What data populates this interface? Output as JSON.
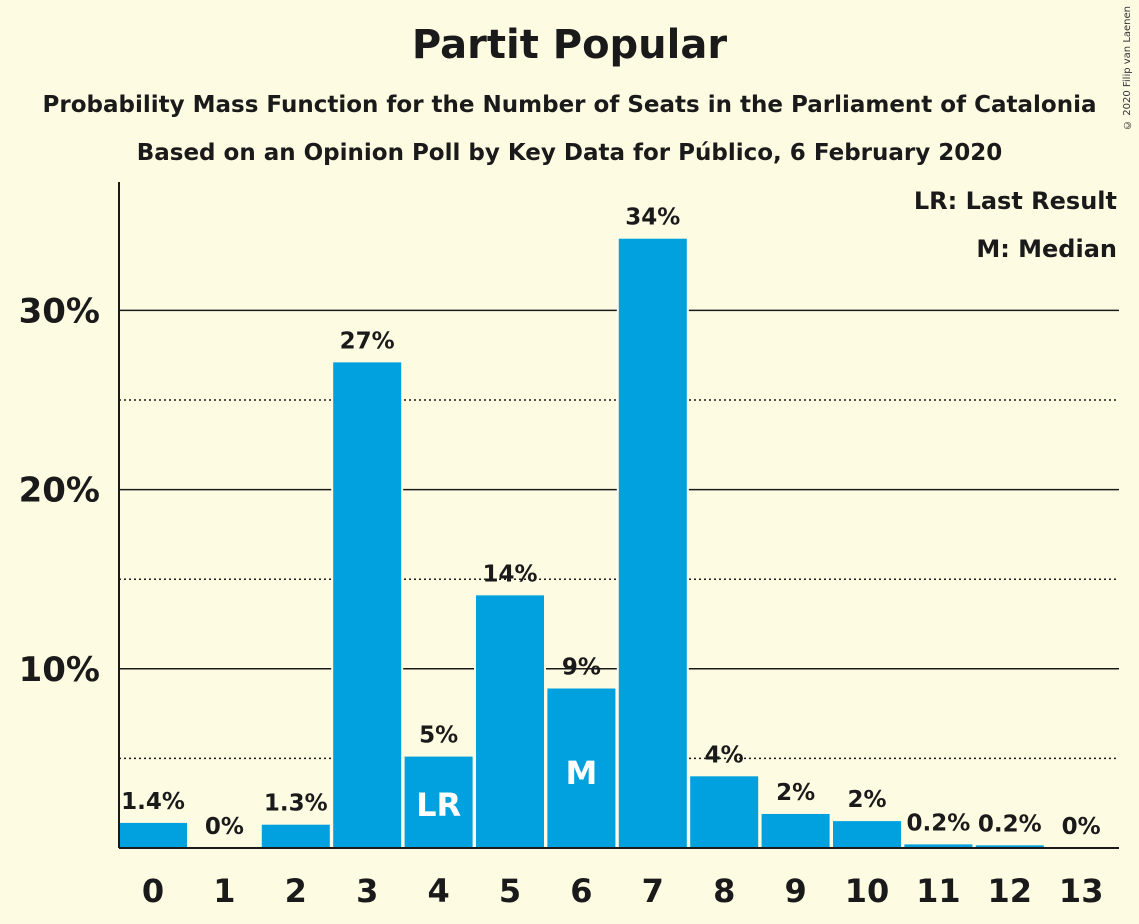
{
  "chart_data": {
    "type": "bar",
    "title": "Partit Popular",
    "subtitle_1": "Probability Mass Function for the Number of Seats in the Parliament of Catalonia",
    "subtitle_2": "Based on an Opinion Poll by Key Data for Público, 6 February 2020",
    "copyright": "© 2020 Filip van Laenen",
    "categories": [
      "0",
      "1",
      "2",
      "3",
      "4",
      "5",
      "6",
      "7",
      "8",
      "9",
      "10",
      "11",
      "12",
      "13"
    ],
    "values": [
      1.4,
      0,
      1.3,
      27.1,
      5.1,
      14.1,
      8.9,
      34.0,
      4.0,
      1.9,
      1.5,
      0.2,
      0.15,
      0
    ],
    "data_labels": [
      "1.4%",
      "0%",
      "1.3%",
      "27%",
      "5%",
      "14%",
      "9%",
      "34%",
      "4%",
      "2%",
      "2%",
      "0.2%",
      "0.2%",
      "0%"
    ],
    "bar_markers": {
      "4": "LR",
      "6": "M"
    },
    "ylim": [
      0,
      37
    ],
    "y_ticks": [
      10,
      20,
      30
    ],
    "y_tick_labels": [
      "10%",
      "20%",
      "30%"
    ],
    "minor_gridlines": [
      5,
      15,
      25
    ],
    "legend": [
      "LR: Last Result",
      "M: Median"
    ],
    "legend_position": "top-right",
    "colors": {
      "bar": "#00a1de",
      "background": "#fefbe3",
      "text": "#1a1a1a",
      "marker_text": "#ffffff"
    }
  }
}
